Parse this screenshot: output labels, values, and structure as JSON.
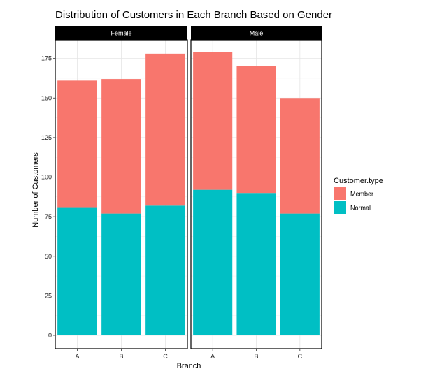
{
  "chart_data": {
    "type": "bar",
    "stacked": true,
    "title": "Distribution of Customers in Each Branch Based on Gender",
    "xlabel": "Branch",
    "ylabel": "Number of Customers",
    "ylim": [
      0,
      185
    ],
    "yticks": [
      0,
      25,
      50,
      75,
      100,
      125,
      150,
      175
    ],
    "grid": true,
    "categories": [
      "A",
      "B",
      "C"
    ],
    "facets": [
      {
        "label": "Female",
        "series": [
          {
            "name": "Normal",
            "values": [
              81,
              77,
              82
            ]
          },
          {
            "name": "Member",
            "values": [
              80,
              85,
              96
            ]
          }
        ]
      },
      {
        "label": "Male",
        "series": [
          {
            "name": "Normal",
            "values": [
              92,
              90,
              77
            ]
          },
          {
            "name": "Member",
            "values": [
              87,
              80,
              73
            ]
          }
        ]
      }
    ],
    "legend": {
      "title": "Customer.type",
      "position": "right",
      "items": [
        {
          "name": "Member",
          "color": "#F8766D"
        },
        {
          "name": "Normal",
          "color": "#00BFC4"
        }
      ]
    },
    "colors": {
      "Member": "#F8766D",
      "Normal": "#00BFC4"
    }
  }
}
